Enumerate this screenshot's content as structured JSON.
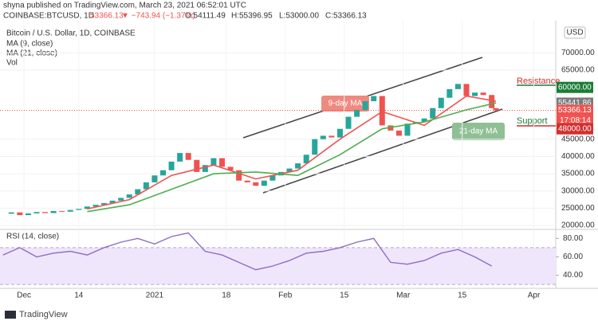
{
  "header": {
    "publisher": "shyna published on TradingView.com, March 23, 2021 06:52:01 UTC",
    "symbol": "COINBASE:BTCUSD, 1D",
    "last": "53366.13",
    "change": "▼ −743.94 (−1.37%)",
    "open": "O:54111.49",
    "high": "H:55396.95",
    "low": "L:53000.00",
    "close": "C:53366.13"
  },
  "footer": "TradingView",
  "chart_data": [
    {
      "type": "candlestick",
      "title": "Bitcoin / U.S. Dollar, 1D, COINBASE",
      "currency": "USD",
      "up_color": "#26a69a",
      "down_color": "#ef5350",
      "x": [
        0,
        2,
        4,
        6,
        8,
        10,
        12,
        14,
        16,
        18,
        20,
        22,
        24,
        26,
        28,
        30,
        32,
        34,
        36,
        38,
        40,
        42,
        44,
        46,
        48,
        50,
        52,
        54,
        56,
        58,
        60,
        62,
        64,
        66,
        68,
        70,
        72,
        74,
        76,
        78,
        80,
        82,
        84,
        86,
        88,
        90,
        92,
        94,
        96,
        98,
        100,
        102,
        104,
        106,
        108,
        110,
        112,
        114,
        116,
        117
      ],
      "close": [
        23400,
        23800,
        23000,
        23500,
        23900,
        23600,
        24200,
        24000,
        24500,
        24800,
        25500,
        26000,
        26500,
        27200,
        28000,
        29000,
        30500,
        32500,
        34500,
        36000,
        38500,
        41000,
        39000,
        35500,
        37500,
        39500,
        37000,
        36000,
        33000,
        32500,
        31500,
        33000,
        34500,
        35500,
        36500,
        38000,
        40500,
        45000,
        46000,
        45500,
        48000,
        51500,
        53500,
        56000,
        57500,
        49000,
        47500,
        46000,
        49500,
        50000,
        51000,
        54000,
        57000,
        59500,
        61000,
        57500,
        58500,
        57800,
        54000,
        53366.13
      ],
      "ma": [
        {
          "name": "MA (9, close)",
          "color": "#ef5350",
          "x": [
            20,
            30,
            40,
            50,
            60,
            70,
            80,
            90,
            100,
            110,
            117
          ],
          "values": [
            24800,
            27500,
            34500,
            37500,
            33500,
            36000,
            45000,
            53000,
            49000,
            57500,
            56000
          ]
        },
        {
          "name": "MA (21, close)",
          "color": "#4caf50",
          "x": [
            20,
            30,
            40,
            50,
            60,
            70,
            80,
            90,
            100,
            110,
            117
          ],
          "values": [
            24000,
            26000,
            30500,
            35000,
            35500,
            34500,
            40500,
            48000,
            50000,
            53500,
            55500
          ]
        }
      ],
      "volume_label": "Vol",
      "xlim": [
        -0.7,
        131.2
      ],
      "ylim": [
        18864,
        79318
      ],
      "xticks": [
        {
          "value": 5,
          "label": "Dec"
        },
        {
          "value": 18,
          "label": "14"
        },
        {
          "value": 36,
          "label": "2021"
        },
        {
          "value": 53,
          "label": "18"
        },
        {
          "value": 67,
          "label": "Feb"
        },
        {
          "value": 81,
          "label": "15"
        },
        {
          "value": 95,
          "label": "Mar"
        },
        {
          "value": 109,
          "label": "15"
        },
        {
          "value": 126,
          "label": "Apr"
        }
      ],
      "yticks": [
        {
          "value": 20000,
          "label": "20000.00"
        },
        {
          "value": 25000,
          "label": "25000.00"
        },
        {
          "value": 30000,
          "label": "30000.00"
        },
        {
          "value": 35000,
          "label": "35000.00"
        },
        {
          "value": 40000,
          "label": "40000.00"
        },
        {
          "value": 45000,
          "label": "45000.00"
        },
        {
          "value": 65000,
          "label": "65000.00"
        },
        {
          "value": 70000,
          "label": "70000.00"
        }
      ],
      "levels": [
        {
          "value": 60000,
          "label": "60000.00",
          "color": "#1b7d36"
        },
        {
          "value": 55441.86,
          "label": "55441.86",
          "color": "#7a7a7a"
        },
        {
          "value": 53366.13,
          "label": "53366.13",
          "color": "#ef5350"
        },
        {
          "value": 48000,
          "label": "48000.00",
          "color": "#d32f2f"
        }
      ],
      "countdown": "17:08:14",
      "annotations": [
        "9-day MA",
        "21-day MA",
        "Resistance",
        "Support"
      ]
    },
    {
      "type": "line",
      "title": "RSI (14, close)",
      "color": "#8e6cc5",
      "x": [
        0,
        4,
        8,
        12,
        16,
        20,
        24,
        28,
        32,
        36,
        40,
        44,
        48,
        52,
        56,
        60,
        64,
        68,
        72,
        76,
        80,
        84,
        88,
        92,
        96,
        100,
        104,
        108,
        112,
        116
      ],
      "values": [
        62,
        70,
        60,
        64,
        66,
        62,
        70,
        76,
        80,
        74,
        82,
        86,
        66,
        62,
        54,
        46,
        50,
        56,
        64,
        66,
        70,
        76,
        80,
        54,
        52,
        56,
        64,
        68,
        60,
        50
      ],
      "band": [
        30,
        70
      ],
      "xlim": [
        -0.7,
        131.2
      ],
      "ylim": [
        25.8,
        89.8
      ],
      "yticks": [
        {
          "value": 80,
          "label": "80.00"
        },
        {
          "value": 60,
          "label": "60.00"
        },
        {
          "value": 40,
          "label": "40.00"
        }
      ]
    }
  ]
}
